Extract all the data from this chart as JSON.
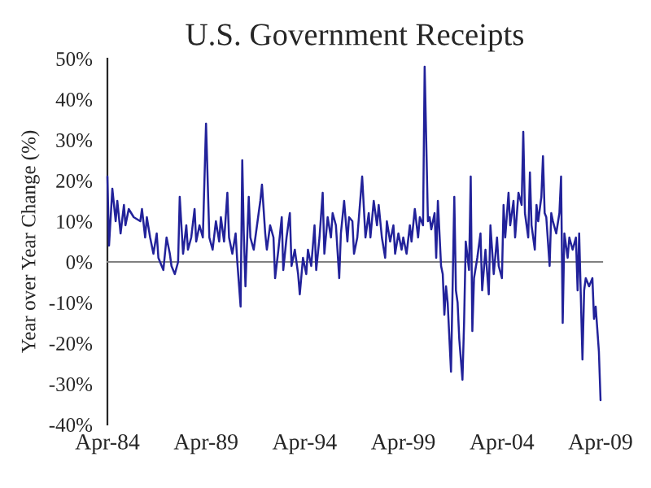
{
  "chart_data": {
    "type": "line",
    "title": "U.S. Government Receipts",
    "ylabel": "Year over Year Change (%)",
    "x": [
      "1984-04",
      "1984-05",
      "1984-07",
      "1984-09",
      "1984-10",
      "1984-12",
      "1985-02",
      "1985-03",
      "1985-05",
      "1985-08",
      "1985-12",
      "1986-01",
      "1986-03",
      "1986-04",
      "1986-06",
      "1986-08",
      "1986-10",
      "1986-11",
      "1987-01",
      "1987-02",
      "1987-04",
      "1987-06",
      "1987-07",
      "1987-09",
      "1987-11",
      "1987-12",
      "1988-02",
      "1988-04",
      "1988-05",
      "1988-07",
      "1988-09",
      "1988-10",
      "1988-12",
      "1989-02",
      "1989-04",
      "1989-06",
      "1989-08",
      "1989-10",
      "1989-12",
      "1990-01",
      "1990-03",
      "1990-05",
      "1990-06",
      "1990-08",
      "1990-10",
      "1990-11",
      "1991-01",
      "1991-02",
      "1991-03",
      "1991-04",
      "1991-06",
      "1991-07",
      "1991-09",
      "1991-11",
      "1992-01",
      "1992-02",
      "1992-04",
      "1992-05",
      "1992-07",
      "1992-09",
      "1992-10",
      "1992-12",
      "1993-02",
      "1993-03",
      "1993-05",
      "1993-07",
      "1993-08",
      "1993-10",
      "1993-12",
      "1994-01",
      "1994-03",
      "1994-05",
      "1994-06",
      "1994-08",
      "1994-10",
      "1994-11",
      "1995-01",
      "1995-03",
      "1995-04",
      "1995-06",
      "1995-08",
      "1995-09",
      "1995-11",
      "1996-01",
      "1996-02",
      "1996-04",
      "1996-06",
      "1996-07",
      "1996-09",
      "1996-10",
      "1996-12",
      "1997-03",
      "1997-05",
      "1997-07",
      "1997-08",
      "1997-10",
      "1997-12",
      "1998-01",
      "1998-03",
      "1998-05",
      "1998-06",
      "1998-08",
      "1998-10",
      "1998-11",
      "1999-01",
      "1999-03",
      "1999-04",
      "1999-06",
      "1999-08",
      "1999-09",
      "1999-11",
      "2000-01",
      "2000-02",
      "2000-04",
      "2000-05",
      "2000-07",
      "2000-08",
      "2000-09",
      "2000-11",
      "2000-12",
      "2001-01",
      "2001-03",
      "2001-04",
      "2001-05",
      "2001-06",
      "2001-07",
      "2001-09",
      "2001-10",
      "2001-11",
      "2001-12",
      "2002-01",
      "2002-02",
      "2002-04",
      "2002-05",
      "2002-06",
      "2002-08",
      "2002-09",
      "2002-10",
      "2002-11",
      "2003-01",
      "2003-03",
      "2003-04",
      "2003-06",
      "2003-08",
      "2003-09",
      "2003-11",
      "2004-01",
      "2004-02",
      "2004-04",
      "2004-05",
      "2004-06",
      "2004-08",
      "2004-09",
      "2004-11",
      "2004-12",
      "2005-02",
      "2005-04",
      "2005-05",
      "2005-06",
      "2005-08",
      "2005-09",
      "2005-10",
      "2005-12",
      "2006-01",
      "2006-02",
      "2006-04",
      "2006-05",
      "2006-06",
      "2006-07",
      "2006-09",
      "2006-10",
      "2006-11",
      "2007-01",
      "2007-03",
      "2007-04",
      "2007-05",
      "2007-06",
      "2007-08",
      "2007-09",
      "2007-11",
      "2008-01",
      "2008-02",
      "2008-03",
      "2008-05",
      "2008-06",
      "2008-07",
      "2008-09",
      "2008-11",
      "2008-12",
      "2009-01",
      "2009-03",
      "2009-04"
    ],
    "series": [
      {
        "color": "#22229a",
        "values": [
          21,
          4,
          18,
          10,
          15,
          7,
          14,
          9,
          13,
          11,
          10,
          13,
          6,
          11,
          6,
          2,
          7,
          1,
          -1,
          -2,
          6,
          2,
          -1,
          -3,
          0,
          16,
          2,
          9,
          3,
          6,
          13,
          5,
          9,
          6,
          34,
          6,
          3,
          10,
          5,
          11,
          5,
          17,
          6,
          2,
          7,
          0,
          -11,
          25,
          7,
          -6,
          16,
          6,
          3,
          9,
          15,
          19,
          7,
          3,
          9,
          6,
          -4,
          3,
          11,
          -2,
          6,
          12,
          -1,
          3,
          -3,
          -8,
          1,
          -3,
          3,
          -1,
          9,
          -2,
          6,
          17,
          2,
          11,
          6,
          12,
          9,
          -4,
          7,
          15,
          5,
          11,
          10,
          2,
          6,
          21,
          6,
          12,
          6,
          15,
          9,
          14,
          6,
          1,
          10,
          5,
          9,
          2,
          7,
          3,
          6,
          2,
          9,
          5,
          13,
          6,
          11,
          9,
          48,
          10,
          11,
          8,
          12,
          1,
          15,
          -1,
          -3,
          -13,
          -6,
          -10,
          -27,
          -6,
          16,
          -7,
          -10,
          -19,
          -29,
          -15,
          5,
          -2,
          21,
          -17,
          -4,
          1,
          7,
          -7,
          3,
          -8,
          9,
          -3,
          6,
          -1,
          -4,
          14,
          6,
          17,
          9,
          15,
          6,
          17,
          14,
          32,
          12,
          6,
          22,
          9,
          3,
          14,
          10,
          16,
          26,
          12,
          11,
          -1,
          12,
          10,
          7,
          12,
          21,
          -15,
          7,
          1,
          6,
          3,
          6,
          -7,
          7,
          -24,
          -7,
          -4,
          -6,
          -4,
          -14,
          -11,
          -22,
          -34
        ]
      }
    ],
    "xlim": [
      "1984-04",
      "2009-05"
    ],
    "xticks": [
      {
        "value": "1984-04",
        "label": "Apr-84"
      },
      {
        "value": "1989-04",
        "label": "Apr-89"
      },
      {
        "value": "1994-04",
        "label": "Apr-94"
      },
      {
        "value": "1999-04",
        "label": "Apr-99"
      },
      {
        "value": "2004-04",
        "label": "Apr-04"
      },
      {
        "value": "2009-04",
        "label": "Apr-09"
      }
    ],
    "ylim": [
      -40,
      50
    ],
    "yticks": [
      {
        "value": -40,
        "label": "-40%"
      },
      {
        "value": -30,
        "label": "-30%"
      },
      {
        "value": -20,
        "label": "-20%"
      },
      {
        "value": -10,
        "label": "-10%"
      },
      {
        "value": 0,
        "label": "0%"
      },
      {
        "value": 10,
        "label": "10%"
      },
      {
        "value": 20,
        "label": "20%"
      },
      {
        "value": 30,
        "label": "30%"
      },
      {
        "value": 40,
        "label": "40%"
      },
      {
        "value": 50,
        "label": "50%"
      }
    ],
    "marker": "none",
    "line_style": "solid"
  }
}
